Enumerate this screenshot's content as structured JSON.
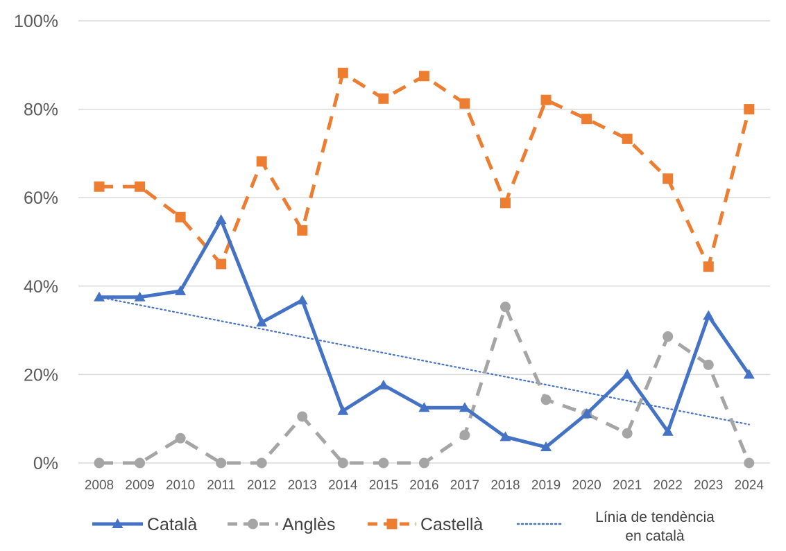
{
  "chart_data": {
    "type": "line",
    "title": "",
    "xlabel": "",
    "ylabel": "",
    "categories": [
      "2008",
      "2009",
      "2010",
      "2011",
      "2012",
      "2013",
      "2014",
      "2015",
      "2016",
      "2017",
      "2018",
      "2019",
      "2020",
      "2021",
      "2022",
      "2023",
      "2024"
    ],
    "ylim": [
      0,
      100
    ],
    "yticks": [
      0,
      20,
      40,
      60,
      80,
      100
    ],
    "ytick_labels": [
      "0%",
      "20%",
      "40%",
      "60%",
      "80%",
      "100%"
    ],
    "grid": true,
    "legend_position": "bottom",
    "series": [
      {
        "name": "Català",
        "color": "#4472C4",
        "style": "solid",
        "marker": "triangle",
        "values": [
          37.5,
          37.5,
          38.9,
          55.0,
          31.8,
          36.8,
          11.8,
          17.6,
          12.5,
          12.5,
          5.9,
          3.6,
          11.1,
          20.0,
          7.1,
          33.3,
          20.0
        ]
      },
      {
        "name": "Anglès",
        "color": "#A5A5A5",
        "style": "dashed",
        "marker": "circle",
        "values": [
          0,
          0,
          5.6,
          0,
          0,
          10.5,
          0,
          0,
          0,
          6.3,
          35.3,
          14.3,
          11.1,
          6.7,
          28.6,
          22.2,
          0
        ]
      },
      {
        "name": "Castellà",
        "color": "#ED7D31",
        "style": "dashed",
        "marker": "square",
        "values": [
          62.5,
          62.5,
          55.6,
          45.0,
          68.2,
          52.6,
          88.2,
          82.4,
          87.5,
          81.3,
          58.8,
          82.1,
          77.8,
          73.3,
          64.3,
          44.4,
          80.0
        ]
      }
    ],
    "trendline": {
      "name": "Línia de tendència en català",
      "label_lines": [
        "Línia de tendència",
        "en català"
      ],
      "color": "#4472C4",
      "style": "dotted",
      "start": 37.5,
      "end": 8.7
    }
  }
}
